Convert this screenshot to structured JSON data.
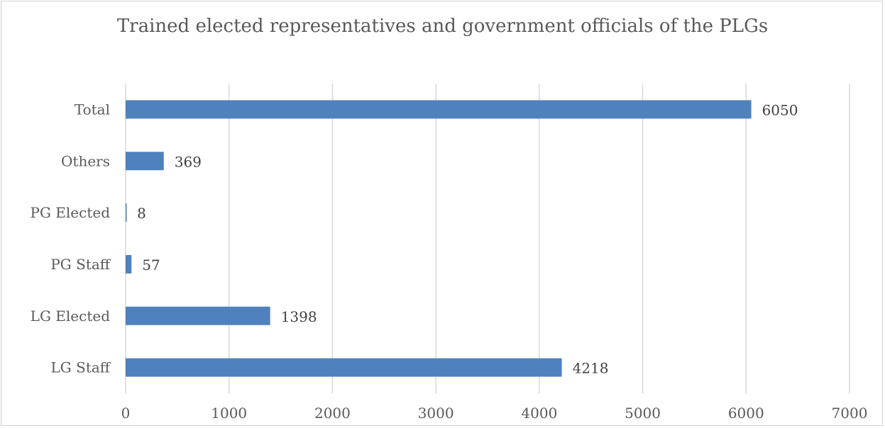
{
  "chart_data": {
    "type": "bar",
    "orientation": "horizontal",
    "title": "Trained elected representatives and government officials of the PLGs",
    "categories": [
      "LG Staff",
      "LG Elected",
      "PG Staff",
      "PG Elected",
      "Others",
      "Total"
    ],
    "values": [
      4218,
      1398,
      57,
      8,
      369,
      6050
    ],
    "xlim": [
      0,
      7000
    ],
    "xticks": [
      0,
      1000,
      2000,
      3000,
      4000,
      5000,
      6000,
      7000
    ],
    "xlabel": "",
    "ylabel": "",
    "grid": "vertical",
    "legend": "none",
    "bar_color": "#4f81bd",
    "grid_color": "#d9d9d9"
  }
}
